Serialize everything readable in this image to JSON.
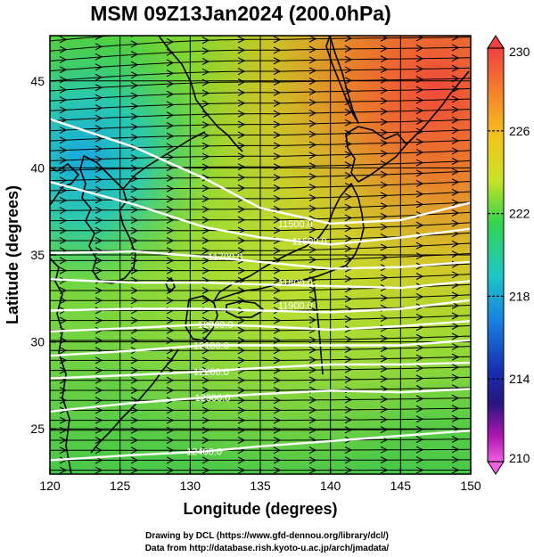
{
  "title": "MSM 09Z13Jan2024 (200.0hPa)",
  "map": {
    "xlabel": "Longitude (degrees)",
    "ylabel": "Latitude  (degrees)",
    "xlim": [
      120,
      150
    ],
    "ylim": [
      22.4,
      47.6
    ],
    "xticks": [
      120,
      125,
      130,
      135,
      140,
      145,
      150
    ],
    "yticks": [
      25,
      30,
      35,
      40,
      45
    ],
    "grid": true,
    "region": "Japan and surroundings",
    "field": "temperature",
    "vectors": "wind streamlines (eastward flow)",
    "contours": [
      {
        "label": "11500.0",
        "lon": 137.5,
        "lat": 36.8,
        "points": [
          [
            120,
            42.8
          ],
          [
            126,
            41.2
          ],
          [
            131,
            39.4
          ],
          [
            135,
            37.7
          ],
          [
            140,
            36.8
          ],
          [
            145,
            37.0
          ],
          [
            150,
            38.0
          ]
        ]
      },
      {
        "label": "11600.0",
        "lon": 138.5,
        "lat": 35.8,
        "points": [
          [
            120,
            39.2
          ],
          [
            126,
            37.9
          ],
          [
            131,
            36.6
          ],
          [
            135,
            36.0
          ],
          [
            140,
            35.6
          ],
          [
            145,
            36.0
          ],
          [
            150,
            36.5
          ]
        ]
      },
      {
        "label": "11700.0",
        "lon": 132.5,
        "lat": 34.9,
        "points": [
          [
            120,
            35.1
          ],
          [
            126,
            35.2
          ],
          [
            131,
            34.9
          ],
          [
            135,
            34.6
          ],
          [
            140,
            34.2
          ],
          [
            145,
            34.3
          ],
          [
            150,
            34.6
          ]
        ]
      },
      {
        "label": "11800.0",
        "lon": 137.5,
        "lat": 33.4,
        "points": [
          [
            120,
            33.6
          ],
          [
            126,
            33.4
          ],
          [
            131,
            33.4
          ],
          [
            135,
            33.3
          ],
          [
            140,
            33.2
          ],
          [
            145,
            33.1
          ],
          [
            150,
            33.5
          ]
        ]
      },
      {
        "label": "11900.0",
        "lon": 137.5,
        "lat": 32.1,
        "points": [
          [
            120,
            31.8
          ],
          [
            126,
            31.9
          ],
          [
            131,
            31.9
          ],
          [
            135,
            31.8
          ],
          [
            140,
            31.7
          ],
          [
            145,
            31.9
          ],
          [
            150,
            32.4
          ]
        ]
      },
      {
        "label": "12000.0",
        "lon": 131.8,
        "lat": 31.0,
        "points": [
          [
            120,
            30.6
          ],
          [
            126,
            30.8
          ],
          [
            131,
            31.0
          ],
          [
            135,
            30.9
          ],
          [
            140,
            30.7
          ],
          [
            145,
            30.9
          ],
          [
            150,
            31.2
          ]
        ]
      },
      {
        "label": "12100.0",
        "lon": 131.5,
        "lat": 29.8,
        "points": [
          [
            120,
            29.2
          ],
          [
            126,
            29.5
          ],
          [
            131,
            29.8
          ],
          [
            135,
            29.8
          ],
          [
            140,
            29.8
          ],
          [
            145,
            29.8
          ],
          [
            150,
            30.1
          ]
        ]
      },
      {
        "label": "12200.0",
        "lon": 131.5,
        "lat": 28.3,
        "points": [
          [
            120,
            27.9
          ],
          [
            126,
            28.1
          ],
          [
            131,
            28.3
          ],
          [
            135,
            28.5
          ],
          [
            140,
            28.7
          ],
          [
            145,
            28.7
          ],
          [
            150,
            28.8
          ]
        ]
      },
      {
        "label": "12300.0",
        "lon": 131.6,
        "lat": 26.8,
        "points": [
          [
            120,
            26.0
          ],
          [
            126,
            26.5
          ],
          [
            131,
            26.8
          ],
          [
            135,
            27.0
          ],
          [
            140,
            27.2
          ],
          [
            145,
            27.1
          ],
          [
            150,
            27.3
          ]
        ]
      },
      {
        "label": "12400.0",
        "lon": 131.0,
        "lat": 23.7,
        "points": [
          [
            120,
            23.2
          ],
          [
            126,
            23.5
          ],
          [
            131,
            23.7
          ],
          [
            135,
            24.0
          ],
          [
            140,
            24.3
          ],
          [
            145,
            24.6
          ],
          [
            150,
            24.9
          ]
        ]
      }
    ]
  },
  "colorbar": {
    "min": 210,
    "max": 230,
    "ticks": [
      230,
      226,
      222,
      218,
      214,
      210
    ]
  },
  "credits": {
    "line1": "Drawing by DCL (https://www.gfd-dennou.org/library/dcl/)",
    "line2": "Data from http://database.rish.kyoto-u.ac.jp/arch/jmadata/"
  }
}
